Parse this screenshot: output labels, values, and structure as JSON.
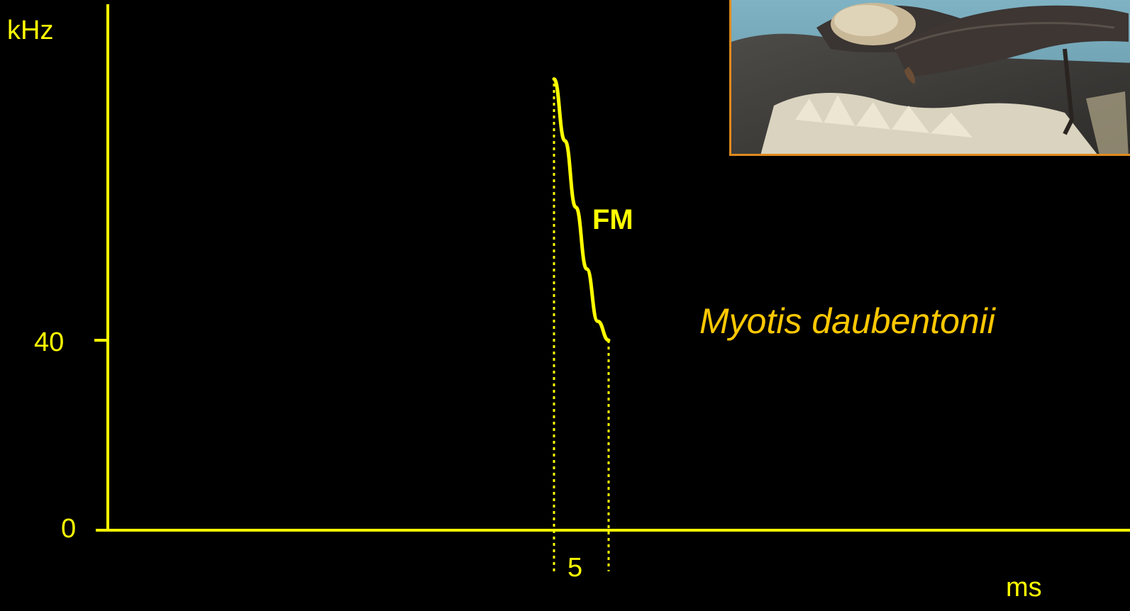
{
  "colors": {
    "background": "#000000",
    "axis": "#ffff00",
    "species_label": "#ffc800",
    "photo_border": "#e08a1e"
  },
  "photo": {
    "subject": "bat-photo",
    "description_icon": "bat-perched-on-rock-photo"
  },
  "chart_data": {
    "type": "line",
    "title": "",
    "ylabel": "kHz",
    "xlabel": "ms",
    "y_ticks": [
      {
        "value": 0,
        "label": "0"
      },
      {
        "value": 40,
        "label": "40"
      }
    ],
    "duration_marker": {
      "label": "5",
      "value_ms": 5
    },
    "ylim": [
      0,
      80
    ],
    "series": [
      {
        "name": "FM",
        "label": "FM",
        "points": [
          {
            "t": 0.0,
            "f": 95
          },
          {
            "t": 1.0,
            "f": 82
          },
          {
            "t": 2.0,
            "f": 68
          },
          {
            "t": 3.0,
            "f": 55
          },
          {
            "t": 4.0,
            "f": 44
          },
          {
            "t": 5.0,
            "f": 40
          }
        ]
      }
    ],
    "annotation": "Myotis daubentonii",
    "grid": false
  }
}
